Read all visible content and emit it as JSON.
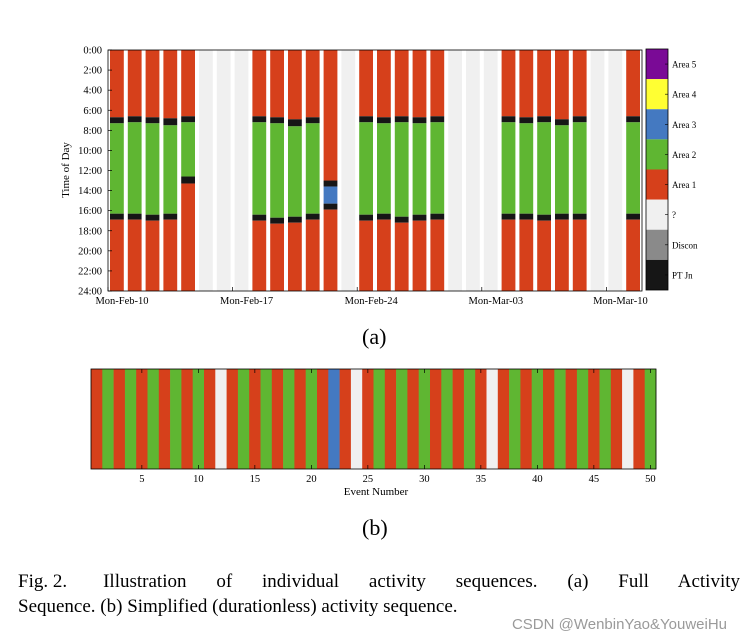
{
  "figure_a_label": "(a)",
  "figure_b_label": "(b)",
  "caption": {
    "fig_number": "Fig. 2.",
    "line1": "Illustration of individual activity sequences. (a) Full Activity",
    "line2": "Sequence. (b) Simplified (durationless) activity sequence."
  },
  "watermark": "CSDN @WenbinYao&YouweiHu",
  "colors": {
    "area5": "#7a0a96",
    "area4": "#ffff33",
    "area3": "#4479c1",
    "area2": "#5fb632",
    "area1": "#d6401b",
    "unknown": "#f0f0f0",
    "disconnect": "#8a8a8a",
    "pt_journey": "#161616"
  },
  "chart_data": [
    {
      "id": "full-activity-sequence",
      "type": "heatmap",
      "ylabel": "Time of Day",
      "xlabel": "",
      "ylim": [
        0,
        24
      ],
      "y_ticks": [
        "0:00",
        "2:00",
        "4:00",
        "6:00",
        "8:00",
        "10:00",
        "12:00",
        "14:00",
        "16:00",
        "18:00",
        "20:00",
        "22:00",
        "24:00"
      ],
      "x_ticks": [
        {
          "day": 0,
          "label": "Mon-Feb-10"
        },
        {
          "day": 7,
          "label": "Mon-Feb-17"
        },
        {
          "day": 14,
          "label": "Mon-Feb-24"
        },
        {
          "day": 21,
          "label": "Mon-Mar-03"
        },
        {
          "day": 28,
          "label": "Mon-Mar-10"
        }
      ],
      "n_days": 30,
      "legend": [
        "Area 5",
        "Area 4",
        "Area 3",
        "Area 2",
        "Area 1",
        "?",
        "Discon",
        "PT Jn"
      ],
      "legend_keys": [
        "area5",
        "area4",
        "area3",
        "area2",
        "area1",
        "unknown",
        "disconnect",
        "pt_journey"
      ],
      "days": [
        {
          "day": 0,
          "segments": [
            [
              "area1",
              0,
              6.7
            ],
            [
              "pt_journey",
              6.7,
              7.3
            ],
            [
              "area2",
              7.3,
              16.3
            ],
            [
              "pt_journey",
              16.3,
              16.9
            ],
            [
              "area1",
              16.9,
              24
            ]
          ]
        },
        {
          "day": 1,
          "segments": [
            [
              "area1",
              0,
              6.6
            ],
            [
              "pt_journey",
              6.6,
              7.2
            ],
            [
              "area2",
              7.2,
              16.3
            ],
            [
              "pt_journey",
              16.3,
              16.9
            ],
            [
              "area1",
              16.9,
              24
            ]
          ]
        },
        {
          "day": 2,
          "segments": [
            [
              "area1",
              0,
              6.7
            ],
            [
              "pt_journey",
              6.7,
              7.3
            ],
            [
              "area2",
              7.3,
              16.4
            ],
            [
              "pt_journey",
              16.4,
              17.0
            ],
            [
              "area1",
              17.0,
              24
            ]
          ]
        },
        {
          "day": 3,
          "segments": [
            [
              "area1",
              0,
              6.8
            ],
            [
              "pt_journey",
              6.8,
              7.5
            ],
            [
              "area2",
              7.5,
              16.3
            ],
            [
              "pt_journey",
              16.3,
              16.9
            ],
            [
              "area1",
              16.9,
              24
            ]
          ]
        },
        {
          "day": 4,
          "segments": [
            [
              "area1",
              0,
              6.6
            ],
            [
              "pt_journey",
              6.6,
              7.2
            ],
            [
              "area2",
              7.2,
              12.6
            ],
            [
              "pt_journey",
              12.6,
              13.3
            ],
            [
              "area1",
              13.3,
              24
            ]
          ]
        },
        {
          "day": 5,
          "segments": [
            [
              "unknown",
              0,
              24
            ]
          ]
        },
        {
          "day": 6,
          "segments": [
            [
              "unknown",
              0,
              24
            ]
          ]
        },
        {
          "day": 7,
          "segments": [
            [
              "unknown",
              0,
              24
            ]
          ]
        },
        {
          "day": 8,
          "segments": [
            [
              "area1",
              0,
              6.6
            ],
            [
              "pt_journey",
              6.6,
              7.2
            ],
            [
              "area2",
              7.2,
              16.4
            ],
            [
              "pt_journey",
              16.4,
              17.0
            ],
            [
              "area1",
              17.0,
              24
            ]
          ]
        },
        {
          "day": 9,
          "segments": [
            [
              "area1",
              0,
              6.7
            ],
            [
              "pt_journey",
              6.7,
              7.3
            ],
            [
              "area2",
              7.3,
              16.7
            ],
            [
              "pt_journey",
              16.7,
              17.3
            ],
            [
              "area1",
              17.3,
              24
            ]
          ]
        },
        {
          "day": 10,
          "segments": [
            [
              "area1",
              0,
              6.9
            ],
            [
              "pt_journey",
              6.9,
              7.6
            ],
            [
              "area2",
              7.6,
              16.6
            ],
            [
              "pt_journey",
              16.6,
              17.2
            ],
            [
              "area1",
              17.2,
              24
            ]
          ]
        },
        {
          "day": 11,
          "segments": [
            [
              "area1",
              0,
              6.7
            ],
            [
              "pt_journey",
              6.7,
              7.3
            ],
            [
              "area2",
              7.3,
              16.3
            ],
            [
              "pt_journey",
              16.3,
              16.9
            ],
            [
              "area1",
              16.9,
              24
            ]
          ]
        },
        {
          "day": 12,
          "segments": [
            [
              "area1",
              0,
              13.0
            ],
            [
              "pt_journey",
              13.0,
              13.6
            ],
            [
              "area3",
              13.6,
              15.3
            ],
            [
              "pt_journey",
              15.3,
              15.9
            ],
            [
              "area1",
              15.9,
              24
            ]
          ]
        },
        {
          "day": 13,
          "segments": [
            [
              "unknown",
              0,
              24
            ]
          ]
        },
        {
          "day": 14,
          "segments": [
            [
              "area1",
              0,
              6.6
            ],
            [
              "pt_journey",
              6.6,
              7.2
            ],
            [
              "area2",
              7.2,
              16.4
            ],
            [
              "pt_journey",
              16.4,
              17.0
            ],
            [
              "area1",
              17.0,
              24
            ]
          ]
        },
        {
          "day": 15,
          "segments": [
            [
              "area1",
              0,
              6.7
            ],
            [
              "pt_journey",
              6.7,
              7.3
            ],
            [
              "area2",
              7.3,
              16.3
            ],
            [
              "pt_journey",
              16.3,
              16.9
            ],
            [
              "area1",
              16.9,
              24
            ]
          ]
        },
        {
          "day": 16,
          "segments": [
            [
              "area1",
              0,
              6.6
            ],
            [
              "pt_journey",
              6.6,
              7.2
            ],
            [
              "area2",
              7.2,
              16.6
            ],
            [
              "pt_journey",
              16.6,
              17.2
            ],
            [
              "area1",
              17.2,
              24
            ]
          ]
        },
        {
          "day": 17,
          "segments": [
            [
              "area1",
              0,
              6.7
            ],
            [
              "pt_journey",
              6.7,
              7.3
            ],
            [
              "area2",
              7.3,
              16.4
            ],
            [
              "pt_journey",
              16.4,
              17.0
            ],
            [
              "area1",
              17.0,
              24
            ]
          ]
        },
        {
          "day": 18,
          "segments": [
            [
              "area1",
              0,
              6.6
            ],
            [
              "pt_journey",
              6.6,
              7.2
            ],
            [
              "area2",
              7.2,
              16.3
            ],
            [
              "pt_journey",
              16.3,
              16.9
            ],
            [
              "area1",
              16.9,
              24
            ]
          ]
        },
        {
          "day": 19,
          "segments": [
            [
              "unknown",
              0,
              24
            ]
          ]
        },
        {
          "day": 20,
          "segments": [
            [
              "unknown",
              0,
              24
            ]
          ]
        },
        {
          "day": 21,
          "segments": [
            [
              "unknown",
              0,
              24
            ]
          ]
        },
        {
          "day": 22,
          "segments": [
            [
              "area1",
              0,
              6.6
            ],
            [
              "pt_journey",
              6.6,
              7.2
            ],
            [
              "area2",
              7.2,
              16.3
            ],
            [
              "pt_journey",
              16.3,
              16.9
            ],
            [
              "area1",
              16.9,
              24
            ]
          ]
        },
        {
          "day": 23,
          "segments": [
            [
              "area1",
              0,
              6.7
            ],
            [
              "pt_journey",
              6.7,
              7.3
            ],
            [
              "area2",
              7.3,
              16.3
            ],
            [
              "pt_journey",
              16.3,
              16.9
            ],
            [
              "area1",
              16.9,
              24
            ]
          ]
        },
        {
          "day": 24,
          "segments": [
            [
              "area1",
              0,
              6.6
            ],
            [
              "pt_journey",
              6.6,
              7.2
            ],
            [
              "area2",
              7.2,
              16.4
            ],
            [
              "pt_journey",
              16.4,
              17.0
            ],
            [
              "area1",
              17.0,
              24
            ]
          ]
        },
        {
          "day": 25,
          "segments": [
            [
              "area1",
              0,
              6.9
            ],
            [
              "pt_journey",
              6.9,
              7.5
            ],
            [
              "area2",
              7.5,
              16.3
            ],
            [
              "pt_journey",
              16.3,
              16.9
            ],
            [
              "area1",
              16.9,
              24
            ]
          ]
        },
        {
          "day": 26,
          "segments": [
            [
              "area1",
              0,
              6.6
            ],
            [
              "pt_journey",
              6.6,
              7.2
            ],
            [
              "area2",
              7.2,
              16.3
            ],
            [
              "pt_journey",
              16.3,
              16.9
            ],
            [
              "area1",
              16.9,
              24
            ]
          ]
        },
        {
          "day": 27,
          "segments": [
            [
              "unknown",
              0,
              24
            ]
          ]
        },
        {
          "day": 28,
          "segments": [
            [
              "unknown",
              0,
              24
            ]
          ]
        },
        {
          "day": 29,
          "segments": [
            [
              "area1",
              0,
              6.6
            ],
            [
              "pt_journey",
              6.6,
              7.2
            ],
            [
              "area2",
              7.2,
              16.3
            ],
            [
              "pt_journey",
              16.3,
              16.9
            ],
            [
              "area1",
              16.9,
              24
            ]
          ]
        }
      ]
    },
    {
      "id": "simplified-activity-sequence",
      "type": "heatmap",
      "xlabel": "Event Number",
      "xlim": [
        0.5,
        50.5
      ],
      "x_ticks": [
        5,
        10,
        15,
        20,
        25,
        30,
        35,
        40,
        45,
        50
      ],
      "events": [
        "area1",
        "area2",
        "area1",
        "area2",
        "area1",
        "area2",
        "area1",
        "area2",
        "area1",
        "area2",
        "area1",
        "unknown",
        "area1",
        "area2",
        "area1",
        "area2",
        "area1",
        "area2",
        "area1",
        "area2",
        "area1",
        "area3",
        "area1",
        "unknown",
        "area1",
        "area2",
        "area1",
        "area2",
        "area1",
        "area2",
        "area1",
        "area2",
        "area1",
        "area2",
        "area1",
        "unknown",
        "area1",
        "area2",
        "area1",
        "area2",
        "area1",
        "area2",
        "area1",
        "area2",
        "area1",
        "area2",
        "area1",
        "unknown",
        "area1",
        "area2"
      ]
    }
  ]
}
